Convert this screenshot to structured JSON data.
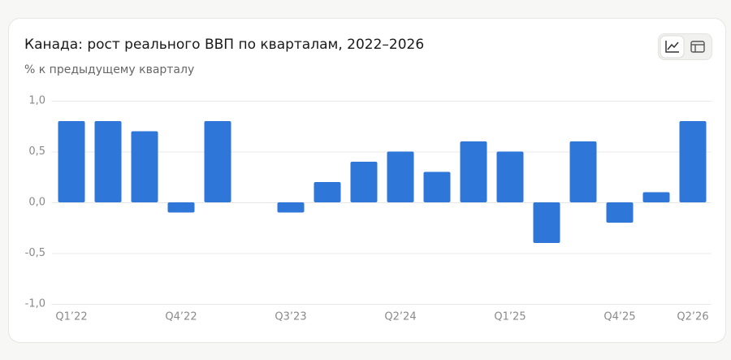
{
  "chart_data": {
    "type": "bar",
    "title": "Канада: рост реального ВВП по кварталам, 2022–2026",
    "subtitle": "% к предыдущему кварталу",
    "categories": [
      "Q1’22",
      null,
      null,
      "Q4’22",
      null,
      null,
      "Q3’23",
      null,
      null,
      "Q2’24",
      null,
      null,
      "Q1’25",
      null,
      null,
      "Q4’25",
      null,
      "Q2’26"
    ],
    "values": [
      0.8,
      0.8,
      0.7,
      -0.1,
      0.8,
      null,
      -0.1,
      0.2,
      0.4,
      0.5,
      0.3,
      0.6,
      0.5,
      -0.4,
      0.6,
      -0.2,
      0.1,
      0.8
    ],
    "color": "#2f76d9",
    "ylim": [
      -1.0,
      1.0
    ],
    "yticks": [
      {
        "value": 1.0,
        "label": "1,0"
      },
      {
        "value": 0.5,
        "label": "0,5"
      },
      {
        "value": 0,
        "label": "0,0"
      },
      {
        "value": -0.5,
        "label": "-0,5"
      },
      {
        "value": -1.0,
        "label": "-1,0"
      }
    ],
    "grid": true
  }
}
